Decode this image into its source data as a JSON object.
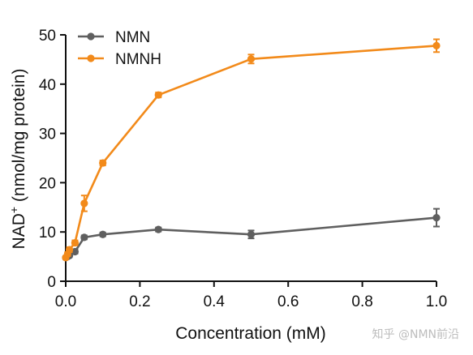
{
  "chart_data": {
    "type": "line",
    "xlabel": "Concentration (mM)",
    "ylabel_main": "NAD",
    "ylabel_sup": "+",
    "ylabel_rest": " (nmol/mg protein)",
    "xlim": [
      0,
      1.0
    ],
    "ylim": [
      0,
      50
    ],
    "xticks": [
      0.0,
      0.2,
      0.4,
      0.6,
      0.8,
      1.0
    ],
    "xtick_labels": [
      "0.0",
      "0.2",
      "0.4",
      "0.6",
      "0.8",
      "1.0"
    ],
    "yticks": [
      0,
      10,
      20,
      30,
      40,
      50
    ],
    "ytick_labels": [
      "0",
      "10",
      "20",
      "30",
      "40",
      "50"
    ],
    "grid": false,
    "legend_position": "top-left",
    "series": [
      {
        "name": "NMN",
        "color": "#5f5f5f",
        "x": [
          0,
          0.005,
          0.01,
          0.025,
          0.05,
          0.1,
          0.25,
          0.5,
          1.0
        ],
        "y": [
          4.8,
          5.0,
          5.2,
          6.0,
          8.9,
          9.5,
          10.5,
          9.5,
          12.9
        ],
        "error": [
          0.3,
          0.3,
          0.3,
          0.4,
          0.4,
          0.4,
          0.4,
          0.8,
          1.8
        ]
      },
      {
        "name": "NMNH",
        "color": "#f28a1a",
        "x": [
          0,
          0.005,
          0.01,
          0.025,
          0.05,
          0.1,
          0.25,
          0.5,
          1.0
        ],
        "y": [
          4.8,
          5.5,
          6.4,
          7.8,
          15.8,
          24.0,
          37.8,
          45.1,
          47.8
        ],
        "error": [
          0.3,
          0.4,
          0.5,
          0.5,
          1.6,
          0.5,
          0.5,
          0.9,
          1.3
        ]
      }
    ]
  },
  "watermark": {
    "text": "知乎 @NMN前沿"
  }
}
